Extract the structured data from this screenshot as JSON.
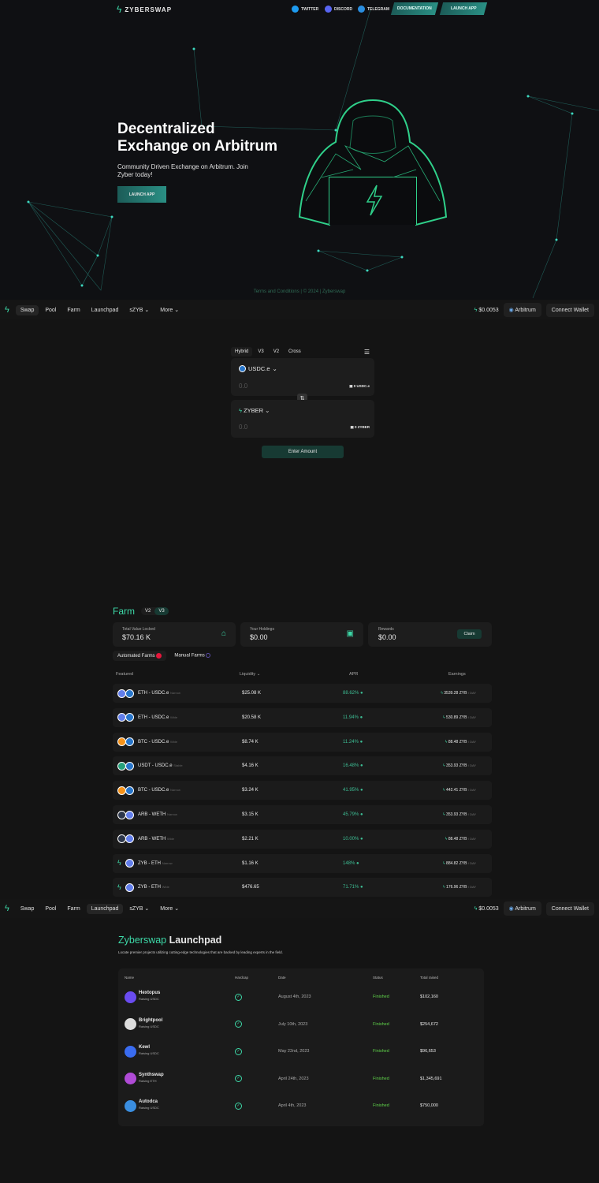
{
  "header": {
    "brand": "ZYBERSWAP",
    "links": [
      {
        "label": "TWITTER",
        "icon": "twitter-icon",
        "color": "#1d9bf0"
      },
      {
        "label": "DISCORD",
        "icon": "discord-icon",
        "color": "#5865f2"
      },
      {
        "label": "TELEGRAM",
        "icon": "telegram-icon",
        "color": "#2a8ee0"
      }
    ],
    "documentation": "DOCUMENTATION",
    "launch_app": "LAUNCH APP"
  },
  "hero": {
    "title_line1": "Decentralized",
    "title_line2": "Exchange on Arbitrum",
    "subtitle": "Community Driven Exchange on Arbitrum. Join Zyber today!",
    "cta": "LAUNCH APP",
    "footer": "Terms and Conditions | © 2024 | Zyberswap"
  },
  "nav": {
    "items": [
      "Swap",
      "Pool",
      "Farm",
      "Launchpad",
      "sZYB",
      "More"
    ],
    "price": "$0.0053",
    "network": "Arbitrum",
    "connect": "Connect Wallet"
  },
  "swap": {
    "tabs": [
      "Hybrid",
      "V3",
      "V2",
      "Cross"
    ],
    "from": {
      "token": "USDC.e",
      "amount": "0.0",
      "balance": "0 USDC.e"
    },
    "to": {
      "token": "ZYBER",
      "amount": "0.0",
      "balance": "0 ZYBER"
    },
    "button": "Enter Amount"
  },
  "farm": {
    "title": "Farm",
    "versions": [
      "V2",
      "V3"
    ],
    "stats": [
      {
        "label": "Total Value Locked",
        "value": "$70.16 K"
      },
      {
        "label": "Your Holdings",
        "value": "$0.00"
      },
      {
        "label": "Rewards",
        "value": "$0.00"
      }
    ],
    "claim": "Claim",
    "tabs": [
      "Automated Farms",
      "Manual Farms"
    ],
    "columns": [
      "Featured",
      "Liquidity",
      "APR",
      "Earnings"
    ],
    "per_day": "/ DAY",
    "rows": [
      {
        "pair": "ETH - USDC.e",
        "type": "Narrow",
        "liquidity": "$25.08 K",
        "apr": "88.62%",
        "earn": "3539.28 ZYB",
        "c1": "#627eea",
        "c2": "#2775ca"
      },
      {
        "pair": "ETH - USDC.e",
        "type": "Wide",
        "liquidity": "$20.58 K",
        "apr": "11.94%",
        "earn": "530.89 ZYB",
        "c1": "#627eea",
        "c2": "#2775ca"
      },
      {
        "pair": "BTC - USDC.e",
        "type": "Wide",
        "liquidity": "$8.74 K",
        "apr": "11.24%",
        "earn": "88.48 ZYB",
        "c1": "#f7931a",
        "c2": "#2775ca"
      },
      {
        "pair": "USDT - USDC.e",
        "type": "Stable",
        "liquidity": "$4.16 K",
        "apr": "16.48%",
        "earn": "353.93 ZYB",
        "c1": "#26a17b",
        "c2": "#2775ca"
      },
      {
        "pair": "BTC - USDC.e",
        "type": "Narrow",
        "liquidity": "$3.24 K",
        "apr": "41.95%",
        "earn": "442.41 ZYB",
        "c1": "#f7931a",
        "c2": "#2775ca"
      },
      {
        "pair": "ARB - WETH",
        "type": "Narrow",
        "liquidity": "$3.15 K",
        "apr": "45.79%",
        "earn": "353.93 ZYB",
        "c1": "#2d374b",
        "c2": "#627eea"
      },
      {
        "pair": "ARB - WETH",
        "type": "Wide",
        "liquidity": "$2.21 K",
        "apr": "10.00%",
        "earn": "88.48 ZYB",
        "c1": "#2d374b",
        "c2": "#627eea"
      },
      {
        "pair": "ZYB - ETH",
        "type": "Narrow",
        "liquidity": "$1.16 K",
        "apr": "148%",
        "earn": "884.82 ZYB",
        "c1": "#141414",
        "c2": "#627eea"
      },
      {
        "pair": "ZYB - ETH",
        "type": "Wide",
        "liquidity": "$476.65",
        "apr": "71.71%",
        "earn": "176.96 ZYB",
        "c1": "#141414",
        "c2": "#627eea"
      }
    ]
  },
  "launchpad": {
    "title_accent": "Zyberswap",
    "title_rest": "Launchpad",
    "description": "Locate premier projects utilizing cutting-edge technologies that are backed by leading experts in the field.",
    "columns": [
      "Name",
      "Hardcap",
      "Date",
      "Status",
      "Total raised"
    ],
    "rows": [
      {
        "name": "Hextopus",
        "raising": "Raising USDC",
        "date": "August 4th, 2023",
        "status": "Finished",
        "raised": "$102,160",
        "color": "#6a4cf0"
      },
      {
        "name": "Brightpool",
        "raising": "Raising USDC",
        "date": "July 10th, 2023",
        "status": "Finished",
        "raised": "$254,672",
        "color": "#dddddd"
      },
      {
        "name": "Kewl",
        "raising": "Raising USDC",
        "date": "May 22nd, 2023",
        "status": "Finished",
        "raised": "$96,653",
        "color": "#3a6cf0"
      },
      {
        "name": "Synthswap",
        "raising": "Raising ETH",
        "date": "April 24th, 2023",
        "status": "Finished",
        "raised": "$1,345,691",
        "color": "#b04bd6"
      },
      {
        "name": "Autodca",
        "raising": "Raising USDC",
        "date": "April 4th, 2023",
        "status": "Finished",
        "raised": "$750,000",
        "color": "#3a8ee0"
      }
    ]
  },
  "colors": {
    "accent": "#3dd9a8",
    "status_finished": "#5fd34a"
  }
}
